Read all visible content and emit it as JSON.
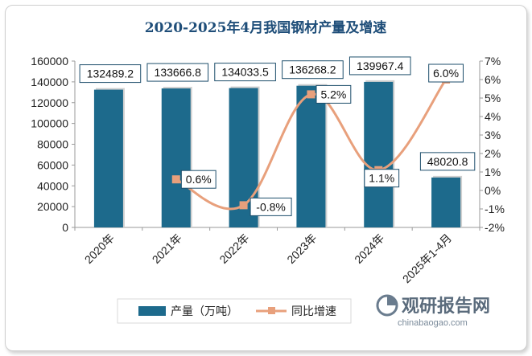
{
  "chart_data": {
    "type": "bar",
    "title": "2020-2025年4月我国钢材产量及增速",
    "categories": [
      "2020年",
      "2021年",
      "2022年",
      "2023年",
      "2024年",
      "2025年1-4月"
    ],
    "series": [
      {
        "name": "产量（万吨）",
        "type": "bar",
        "axis": "left",
        "values": [
          132489.2,
          133666.8,
          134033.5,
          136268.2,
          139967.4,
          48020.8
        ],
        "labels": [
          "132489.2",
          "133666.8",
          "134033.5",
          "136268.2",
          "139967.4",
          "48020.8"
        ],
        "color": "#1d6a8c"
      },
      {
        "name": "同比增速",
        "type": "line",
        "axis": "right",
        "values": [
          null,
          0.6,
          -0.8,
          5.2,
          1.1,
          6.0
        ],
        "labels": [
          "",
          "0.6%",
          "-0.8%",
          "5.2%",
          "1.1%",
          "6.0%"
        ],
        "color": "#e8a07c"
      }
    ],
    "y_left": {
      "min": 0,
      "max": 160000,
      "ticks": [
        "0",
        "20000",
        "40000",
        "60000",
        "80000",
        "100000",
        "120000",
        "140000",
        "160000"
      ]
    },
    "y_right": {
      "min": -2,
      "max": 7,
      "ticks": [
        "-2%",
        "-1%",
        "0%",
        "1%",
        "2%",
        "3%",
        "4%",
        "5%",
        "6%",
        "7%"
      ]
    },
    "grid": false,
    "legend_position": "bottom"
  },
  "watermark": {
    "name": "观研报告网",
    "url": "chinabaogao.com"
  }
}
